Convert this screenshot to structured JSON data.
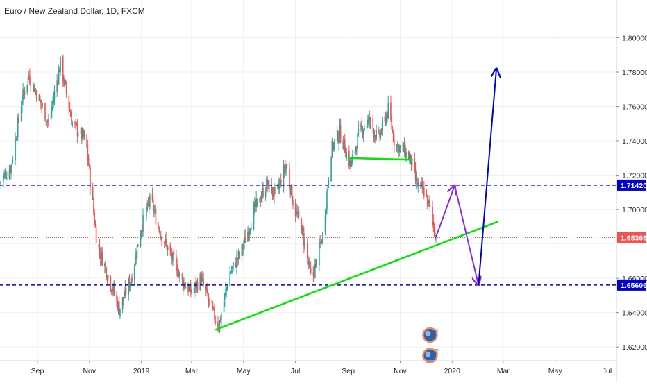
{
  "chart_data": {
    "type": "candlestick",
    "title": "Euro / New Zealand Dollar, 1D, FXCM",
    "ylim": [
      1.612,
      1.822
    ],
    "y_ticks": [
      "1.80000",
      "1.78000",
      "1.76000",
      "1.74000",
      "1.72000",
      "1.70000",
      "1.66000",
      "1.64000",
      "1.62000"
    ],
    "y_tick_values": [
      1.8,
      1.78,
      1.76,
      1.74,
      1.72,
      1.7,
      1.66,
      1.64,
      1.62
    ],
    "x_ticks": [
      "Sep",
      "Nov",
      "2019",
      "Mar",
      "May",
      "Jul",
      "Sep",
      "Nov",
      "2020",
      "Mar",
      "May",
      "Jul"
    ],
    "x_tick_dates": [
      "2018-09-01",
      "2018-11-01",
      "2019-01-01",
      "2019-03-01",
      "2019-05-01",
      "2019-07-01",
      "2019-09-01",
      "2019-11-01",
      "2020-01-01",
      "2020-03-01",
      "2020-05-01",
      "2020-07-01"
    ],
    "xlim": [
      "2018-07-19",
      "2020-07-12"
    ],
    "grid": true,
    "colors": {
      "up": "#26a69a",
      "down": "#ef5350",
      "support": "#00e600",
      "level": "#0000cc",
      "projection_a": "#8a2be2",
      "projection_b": "#0000cd",
      "price": "#ef5350"
    },
    "price_anchors": [
      {
        "date": "2018-07-19",
        "price": 1.716
      },
      {
        "date": "2018-08-01",
        "price": 1.725
      },
      {
        "date": "2018-08-14",
        "price": 1.765
      },
      {
        "date": "2018-08-22",
        "price": 1.778
      },
      {
        "date": "2018-09-05",
        "price": 1.762
      },
      {
        "date": "2018-09-14",
        "price": 1.75
      },
      {
        "date": "2018-09-28",
        "price": 1.785
      },
      {
        "date": "2018-10-12",
        "price": 1.75
      },
      {
        "date": "2018-10-28",
        "price": 1.74
      },
      {
        "date": "2018-11-03",
        "price": 1.712
      },
      {
        "date": "2018-11-10",
        "price": 1.68
      },
      {
        "date": "2018-11-24",
        "price": 1.66
      },
      {
        "date": "2018-12-06",
        "price": 1.642
      },
      {
        "date": "2018-12-20",
        "price": 1.66
      },
      {
        "date": "2019-01-01",
        "price": 1.69
      },
      {
        "date": "2019-01-12",
        "price": 1.706
      },
      {
        "date": "2019-01-22",
        "price": 1.688
      },
      {
        "date": "2019-02-06",
        "price": 1.672
      },
      {
        "date": "2019-02-18",
        "price": 1.658
      },
      {
        "date": "2019-03-01",
        "price": 1.652
      },
      {
        "date": "2019-03-12",
        "price": 1.66
      },
      {
        "date": "2019-03-26",
        "price": 1.64
      },
      {
        "date": "2019-04-02",
        "price": 1.632
      },
      {
        "date": "2019-04-14",
        "price": 1.662
      },
      {
        "date": "2019-04-28",
        "price": 1.675
      },
      {
        "date": "2019-05-14",
        "price": 1.7
      },
      {
        "date": "2019-05-28",
        "price": 1.715
      },
      {
        "date": "2019-06-08",
        "price": 1.708
      },
      {
        "date": "2019-06-20",
        "price": 1.726
      },
      {
        "date": "2019-06-30",
        "price": 1.7
      },
      {
        "date": "2019-07-08",
        "price": 1.69
      },
      {
        "date": "2019-07-20",
        "price": 1.658
      },
      {
        "date": "2019-08-02",
        "price": 1.685
      },
      {
        "date": "2019-08-12",
        "price": 1.735
      },
      {
        "date": "2019-08-22",
        "price": 1.745
      },
      {
        "date": "2019-09-04",
        "price": 1.725
      },
      {
        "date": "2019-09-14",
        "price": 1.745
      },
      {
        "date": "2019-09-26",
        "price": 1.752
      },
      {
        "date": "2019-10-06",
        "price": 1.74
      },
      {
        "date": "2019-10-18",
        "price": 1.758
      },
      {
        "date": "2019-10-26",
        "price": 1.738
      },
      {
        "date": "2019-11-06",
        "price": 1.734
      },
      {
        "date": "2019-11-14",
        "price": 1.728
      },
      {
        "date": "2019-11-20",
        "price": 1.715
      },
      {
        "date": "2019-11-30",
        "price": 1.71
      },
      {
        "date": "2019-12-08",
        "price": 1.696
      },
      {
        "date": "2019-12-13",
        "price": 1.684
      }
    ],
    "support_trendline": {
      "from": {
        "date": "2019-03-29",
        "price": 1.63
      },
      "to": {
        "date": "2020-02-24",
        "price": 1.693
      }
    },
    "neckline": {
      "from": {
        "date": "2019-09-01",
        "price": 1.73
      },
      "to": {
        "date": "2019-11-14",
        "price": 1.729
      }
    },
    "projection_path_a": [
      {
        "date": "2019-12-13",
        "price": 1.684
      },
      {
        "date": "2020-01-04",
        "price": 1.714
      },
      {
        "date": "2020-02-01",
        "price": 1.656
      }
    ],
    "projection_path_b": [
      {
        "date": "2020-02-01",
        "price": 1.656
      },
      {
        "date": "2020-02-22",
        "price": 1.782
      }
    ],
    "horizontal_levels": [
      {
        "price": 1.7142,
        "label": "1.71420",
        "color": "#0000cc"
      },
      {
        "price": 1.65606,
        "label": "1.65606",
        "color": "#0000cc"
      }
    ],
    "last_price": {
      "price": 1.68366,
      "label": "1.68366",
      "color": "#ef5350"
    },
    "event_badges": [
      {
        "date": "2019-12-06",
        "price": 1.627,
        "count": "4"
      },
      {
        "date": "2019-12-06",
        "price": 1.615,
        "count": "2"
      }
    ]
  }
}
